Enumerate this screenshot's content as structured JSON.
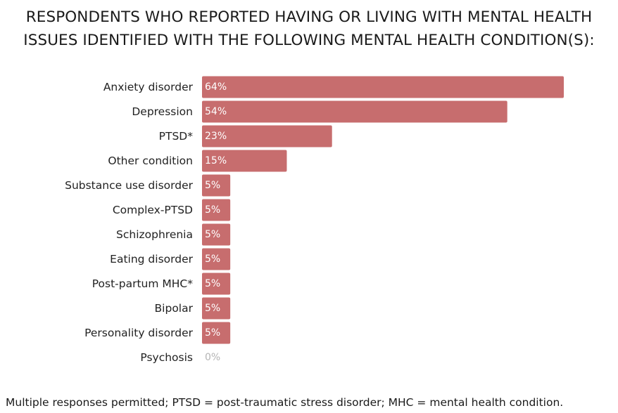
{
  "title_lines": [
    "RESPONDENTS WHO REPORTED HAVING OR LIVING WITH MENTAL HEALTH",
    "ISSUES IDENTIFIED WITH THE FOLLOWING MENTAL HEALTH CONDITION(S):"
  ],
  "footnote": "Multiple responses permitted; PTSD = post-traumatic stress disorder; MHC = mental health condition.",
  "colors": {
    "bar": "#c76d6e",
    "bar_label": "#ffffff",
    "zero_label": "#b5b5b5"
  },
  "chart_data": {
    "type": "bar",
    "orientation": "horizontal",
    "title": "RESPONDENTS WHO REPORTED HAVING OR LIVING WITH MENTAL HEALTH ISSUES IDENTIFIED WITH THE FOLLOWING MENTAL HEALTH CONDITION(S):",
    "xlabel": "",
    "ylabel": "",
    "grid": false,
    "xlim": [
      0,
      64
    ],
    "categories": [
      "Anxiety disorder",
      "Depression",
      "PTSD*",
      "Other condition",
      "Substance use disorder",
      "Complex-PTSD",
      "Schizophrenia",
      "Eating disorder",
      "Post-partum MHC*",
      "Bipolar",
      "Personality disorder",
      "Psychosis"
    ],
    "values": [
      64,
      54,
      23,
      15,
      5,
      5,
      5,
      5,
      5,
      5,
      5,
      0
    ],
    "value_labels": [
      "64%",
      "54%",
      "23%",
      "15%",
      "5%",
      "5%",
      "5%",
      "5%",
      "5%",
      "5%",
      "5%",
      "0%"
    ]
  }
}
